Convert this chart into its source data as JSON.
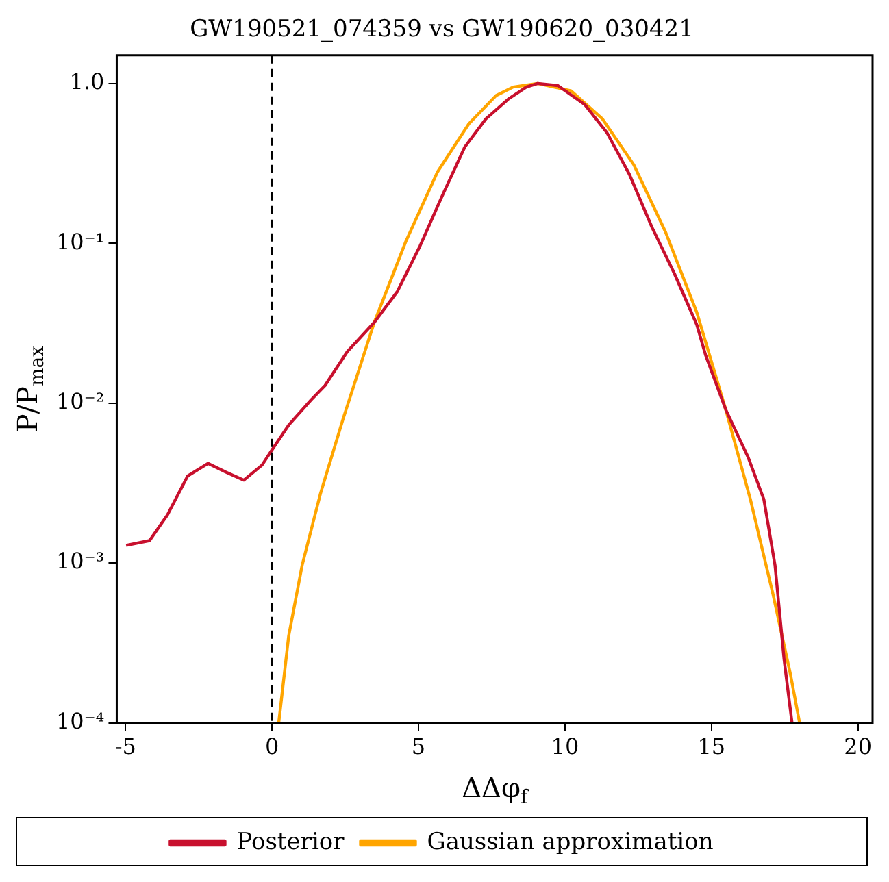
{
  "chart_data": {
    "type": "line",
    "title": "GW190521_074359 vs GW190620_030421",
    "xlabel": "ΔΔφ$_{f}$",
    "ylabel": "P/P$_{max}$",
    "xlim": [
      -5.3,
      20.5
    ],
    "xticks": [
      -5,
      0,
      5,
      10,
      15,
      20
    ],
    "ylim": [
      0.0001,
      1.5
    ],
    "yticks": [
      {
        "value": 0.0001,
        "label": "10⁻⁴"
      },
      {
        "value": 0.001,
        "label": "10⁻³"
      },
      {
        "value": 0.01,
        "label": "10⁻²"
      },
      {
        "value": 0.1,
        "label": "10⁻¹"
      },
      {
        "value": 1,
        "label": "1.0"
      }
    ],
    "log": "y",
    "legend": "bottom",
    "marker": "none",
    "line_style": "solid",
    "ref_lines": [
      {
        "axis": "x",
        "value": 0,
        "color": "#000000",
        "line_style": "dashed"
      }
    ],
    "series": [
      {
        "name": "Posterior",
        "color": "#c8102e",
        "x": [
          -4.98,
          -4.18,
          -3.57,
          -2.88,
          -2.18,
          -1.57,
          -0.96,
          -0.34,
          0,
          0.57,
          1.34,
          1.81,
          2.57,
          3.49,
          4.28,
          5.05,
          5.82,
          6.58,
          7.3,
          8.07,
          8.68,
          9.07,
          9.76,
          10.67,
          11.44,
          12.2,
          12.97,
          13.73,
          14.5,
          14.8,
          15.49,
          16.25,
          16.79,
          17.17,
          17.48,
          17.75
        ],
        "values": [
          0.00129,
          0.00138,
          0.002,
          0.0035,
          0.0042,
          0.0037,
          0.0033,
          0.0041,
          0.0051,
          0.0073,
          0.0105,
          0.0129,
          0.021,
          0.032,
          0.05,
          0.096,
          0.2,
          0.4,
          0.6,
          0.8,
          0.95,
          1.0,
          0.97,
          0.74,
          0.49,
          0.27,
          0.126,
          0.065,
          0.031,
          0.02,
          0.0091,
          0.0046,
          0.0025,
          0.00097,
          0.00025,
          0.0001
        ]
      },
      {
        "name": "Gaussian approximation",
        "color": "#ffa500",
        "x": [
          0.23,
          0.57,
          1.03,
          1.65,
          2.42,
          3.49,
          4.57,
          5.65,
          6.72,
          7.65,
          8.23,
          9.07,
          10.21,
          11.28,
          12.35,
          13.43,
          14.5,
          15.49,
          16.33,
          17.1,
          17.7,
          18.01
        ],
        "values": [
          0.0001,
          0.00035,
          0.00097,
          0.0027,
          0.0079,
          0.032,
          0.103,
          0.28,
          0.56,
          0.84,
          0.95,
          1.0,
          0.9,
          0.6,
          0.31,
          0.118,
          0.037,
          0.0091,
          0.0025,
          0.00064,
          0.0002,
          0.0001
        ]
      }
    ]
  }
}
